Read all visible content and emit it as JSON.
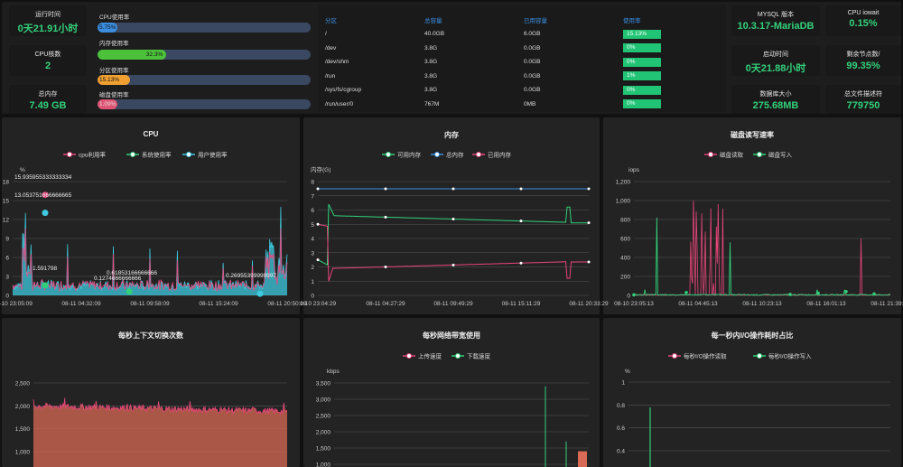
{
  "stats_left": {
    "uptime": {
      "label": "运行时间",
      "value": "0天21.91小时"
    },
    "cpu_cores": {
      "label": "CPU核数",
      "value": "2"
    },
    "total_mem": {
      "label": "总内存",
      "value": "7.49 GB"
    }
  },
  "usage_bars": [
    {
      "label": "CPU使用率",
      "value": "5.75%",
      "percent": 5.75,
      "color": "#3b8de0"
    },
    {
      "label": "内存使用率",
      "value": "32.3%",
      "percent": 32.3,
      "color": "#4cc13a"
    },
    {
      "label": "分区使用率",
      "value": "15.13%",
      "percent": 15.13,
      "color": "#f0a030"
    },
    {
      "label": "磁盘使用率",
      "value": "1.09%",
      "percent": 1.09,
      "color": "#e05575"
    }
  ],
  "filesystem": {
    "headers": [
      "分区",
      "总容量",
      "已用容量",
      "使用率"
    ],
    "rows": [
      [
        "/",
        "40.0GB",
        "6.0GB",
        "15.13%"
      ],
      [
        "/dev",
        "3.8G",
        "0.0GB",
        "0%"
      ],
      [
        "/dev/shm",
        "3.8G",
        "0.0GB",
        "0%"
      ],
      [
        "/run",
        "3.8G",
        "0.0GB",
        "1%"
      ],
      [
        "/sys/fs/cgroup",
        "3.8G",
        "0.0GB",
        "0%"
      ],
      [
        "/run/user/0",
        "767M",
        "0MB",
        "0%"
      ]
    ]
  },
  "stats_right": [
    {
      "label": "MYSQL 版本",
      "value": "10.3.17-MariaDB"
    },
    {
      "label": "CPU iowait",
      "value": "0.15%"
    },
    {
      "label": "启动时间",
      "value": "0天21.88小时"
    },
    {
      "label": "剩余节点数/",
      "value": "99.35%"
    },
    {
      "label": "数据库大小",
      "value": "275.68MB"
    },
    {
      "label": "总文件描述符",
      "value": "779750"
    }
  ],
  "charts": {
    "cpu": {
      "title": "CPU",
      "legend": [
        "cpu利用率",
        "系统使用率",
        "用户使用率"
      ],
      "unit": "%",
      "yticks": [
        "0",
        "3",
        "6",
        "9",
        "12",
        "15",
        "18"
      ],
      "xticks": [
        "08-10 23:05:09",
        "08-11 04:32:09",
        "08-11 09:58:09",
        "08-11 15:24:09",
        "08-11 20:50:09"
      ],
      "annotations": [
        "15.935955333333334",
        "13.053751666666665",
        "1.591798",
        "0.1274666666666",
        "0.61853166666666",
        "0.26955399999997"
      ]
    },
    "mem": {
      "title": "内存",
      "legend": [
        "可用内存",
        "总内存",
        "已用内存"
      ],
      "unit": "内存(G)",
      "yticks": [
        "0",
        "1",
        "2",
        "3",
        "4",
        "5",
        "6",
        "7",
        "8"
      ],
      "xticks": [
        "1-10 23:04:29",
        "08-11 04:27:29",
        "08-11 09:49:29",
        "08-11 15:11:29",
        "08-11 20:33:29"
      ]
    },
    "disk": {
      "title": "磁盘读写速率",
      "legend": [
        "磁盘读取",
        "磁盘写入"
      ],
      "unit": "iops",
      "yticks": [
        "0",
        "200",
        "400",
        "600",
        "800",
        "1,000",
        "1,200"
      ],
      "xticks": [
        "08-10 23:05:13",
        "08-11 04:45:13",
        "08-11 10:23:13",
        "08-11 16:01:13",
        "08-11 21:39:13"
      ]
    },
    "ctx": {
      "title": "每秒上下文切换次数",
      "yticks": [
        "1,000",
        "1,500",
        "2,000",
        "2,500"
      ]
    },
    "net": {
      "title": "每秒网络带宽使用",
      "legend": [
        "上传速度",
        "下载速度"
      ],
      "unit": "kbps",
      "yticks": [
        "1,000",
        "1,500",
        "2,000",
        "2,500",
        "3,000",
        "3,500"
      ]
    },
    "io": {
      "title": "每一秒内I/O操作耗时占比",
      "legend": [
        "每秒I/O操作读取",
        "每秒I/O操作写入"
      ],
      "unit": "%",
      "yticks": [
        "0.4",
        "0.6",
        "0.8",
        "1"
      ]
    }
  }
}
